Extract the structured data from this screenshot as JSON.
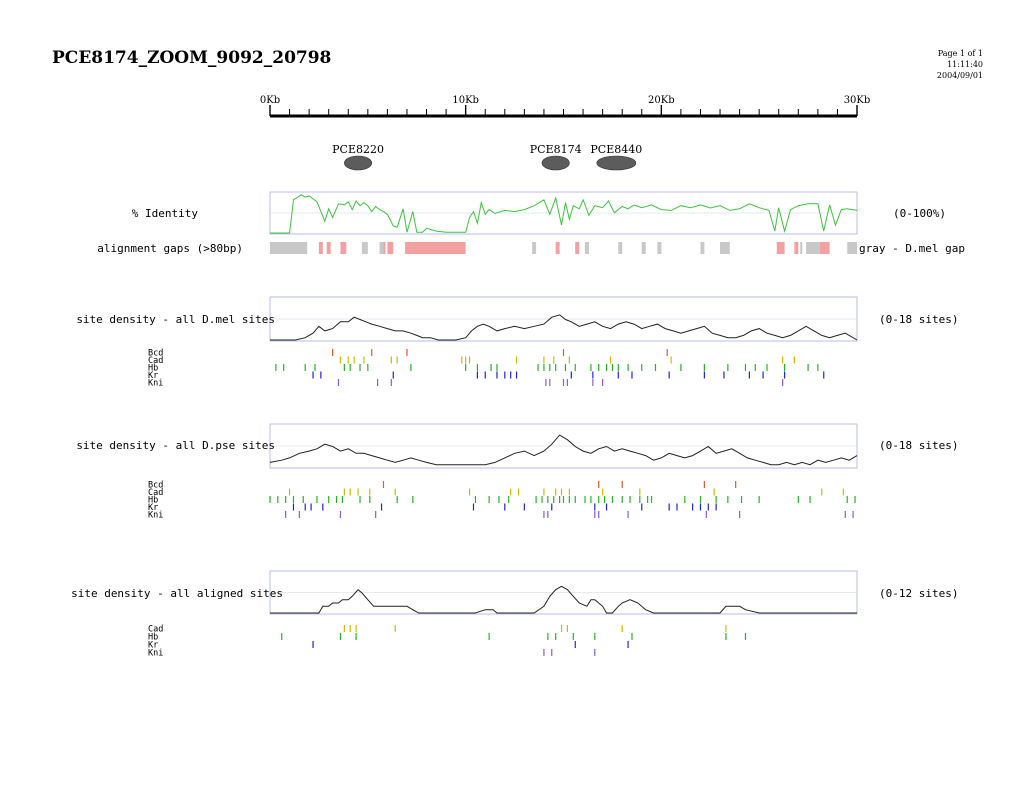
{
  "page": {
    "title": "PCE8174_ZOOM_9092_20798",
    "meta": [
      "Page 1 of 1",
      "11:11:40",
      "2004/09/01"
    ]
  },
  "colors": {
    "frame": "#b8bde8",
    "identity_line": "#3cc43c",
    "density_line": "#222222",
    "gap_gray": "#c8c8c8",
    "gap_red": "#f2a0a0",
    "Bcd": "#e05a2a",
    "Cad": "#d4b800",
    "Hb": "#22b622",
    "Kr": "#2222dd",
    "Kni": "#8a5cd0"
  },
  "chart_data": [
    {
      "type": "axis",
      "name": "ruler",
      "range_kb": [
        0,
        30
      ],
      "tick_labels": [
        "0Kb",
        "10Kb",
        "20Kb",
        "30Kb"
      ],
      "tick_values": [
        0,
        10,
        20,
        30
      ]
    },
    {
      "type": "annotation",
      "name": "enhancers",
      "items": [
        {
          "label": "PCE8220",
          "start": 3.8,
          "end": 5.2
        },
        {
          "label": "PCE8174",
          "start": 13.9,
          "end": 15.3
        },
        {
          "label": "PCE8440",
          "start": 16.7,
          "end": 18.7
        }
      ]
    },
    {
      "type": "line",
      "name": "identity",
      "label": "% Identity",
      "range_label": "(0-100%)",
      "ylim": [
        0,
        100
      ],
      "x": [
        0.0,
        1.0,
        1.2,
        1.6,
        1.8,
        2.0,
        2.4,
        2.8,
        3.0,
        3.2,
        3.5,
        3.8,
        4.0,
        4.2,
        4.4,
        4.6,
        4.8,
        5.0,
        5.2,
        5.4,
        5.6,
        5.8,
        6.0,
        6.3,
        6.5,
        6.8,
        7.0,
        7.3,
        7.5,
        7.8,
        8.0,
        8.5,
        9.0,
        9.5,
        10.0,
        10.2,
        10.4,
        10.6,
        10.8,
        11.0,
        11.2,
        11.5,
        12.0,
        12.5,
        13.0,
        13.5,
        14.0,
        14.3,
        14.6,
        14.9,
        15.1,
        15.3,
        15.5,
        15.8,
        16.0,
        16.3,
        16.6,
        17.0,
        17.3,
        17.6,
        18.0,
        18.3,
        18.6,
        19.0,
        19.5,
        20.0,
        20.5,
        21.0,
        21.5,
        22.0,
        22.5,
        23.0,
        23.5,
        24.0,
        24.5,
        25.0,
        25.5,
        25.8,
        26.0,
        26.3,
        26.6,
        27.0,
        27.5,
        28.0,
        28.3,
        28.6,
        28.9,
        29.2,
        29.5,
        30.0
      ],
      "values": [
        0,
        0,
        85,
        98,
        92,
        95,
        80,
        30,
        62,
        40,
        75,
        72,
        80,
        60,
        82,
        70,
        78,
        70,
        55,
        68,
        60,
        55,
        48,
        18,
        15,
        62,
        2,
        55,
        2,
        2,
        12,
        5,
        2,
        2,
        2,
        40,
        55,
        25,
        78,
        48,
        60,
        50,
        58,
        55,
        60,
        70,
        85,
        48,
        90,
        20,
        78,
        35,
        70,
        62,
        85,
        45,
        70,
        65,
        82,
        52,
        68,
        62,
        72,
        65,
        72,
        60,
        58,
        70,
        65,
        72,
        64,
        70,
        58,
        62,
        75,
        65,
        58,
        5,
        65,
        5,
        60,
        70,
        75,
        75,
        5,
        72,
        20,
        60,
        62,
        58
      ]
    },
    {
      "type": "segments",
      "name": "alignment_gaps",
      "label": "alignment gaps (>80bp)",
      "legend_label": "gray - D.mel gap",
      "gray": [
        [
          0.0,
          1.9
        ],
        [
          4.7,
          5.0
        ],
        [
          5.6,
          5.9
        ],
        [
          13.4,
          13.6
        ],
        [
          16.1,
          16.3
        ],
        [
          17.8,
          18.0
        ],
        [
          19.0,
          19.2
        ],
        [
          19.8,
          20.0
        ],
        [
          22.0,
          22.2
        ],
        [
          23.0,
          23.5
        ],
        [
          27.1,
          27.2
        ],
        [
          27.4,
          28.1
        ],
        [
          29.5,
          30.0
        ]
      ],
      "red": [
        [
          2.5,
          2.7
        ],
        [
          2.9,
          3.1
        ],
        [
          3.6,
          3.9
        ],
        [
          5.8,
          5.9
        ],
        [
          6.0,
          6.3
        ],
        [
          6.9,
          10.0
        ],
        [
          14.6,
          14.8
        ],
        [
          15.6,
          15.8
        ],
        [
          25.9,
          26.3
        ],
        [
          26.8,
          27.0
        ],
        [
          28.1,
          28.6
        ]
      ]
    },
    {
      "type": "line",
      "name": "density_mel",
      "label": "site density - all D.mel sites",
      "range_label": "(0-18 sites)",
      "ylim": [
        0,
        18
      ],
      "x": [
        0.0,
        0.8,
        1.3,
        1.8,
        2.2,
        2.5,
        2.8,
        3.2,
        3.6,
        4.0,
        4.3,
        4.6,
        4.9,
        5.2,
        5.6,
        6.0,
        6.4,
        6.8,
        7.2,
        7.5,
        7.8,
        8.2,
        8.6,
        9.0,
        9.5,
        10.0,
        10.3,
        10.6,
        10.9,
        11.2,
        11.6,
        12.0,
        12.5,
        13.0,
        13.5,
        14.0,
        14.4,
        14.8,
        15.1,
        15.4,
        15.8,
        16.2,
        16.6,
        17.0,
        17.4,
        17.8,
        18.2,
        18.6,
        19.0,
        19.4,
        19.8,
        20.2,
        20.6,
        21.0,
        21.4,
        21.8,
        22.2,
        22.6,
        23.0,
        23.4,
        23.8,
        24.2,
        24.6,
        25.0,
        25.4,
        25.8,
        26.2,
        26.6,
        27.0,
        27.4,
        27.8,
        28.2,
        28.6,
        29.0,
        29.4,
        30.0
      ],
      "values": [
        0,
        0,
        0,
        1,
        3,
        6,
        4,
        5,
        8,
        8,
        10,
        9,
        8,
        7,
        6,
        5,
        4,
        4,
        3,
        2,
        1,
        1,
        0,
        0,
        0,
        1,
        4,
        6,
        7,
        6,
        4,
        5,
        6,
        5,
        6,
        7,
        10,
        11,
        9,
        8,
        6,
        7,
        8,
        6,
        5,
        7,
        8,
        7,
        5,
        6,
        7,
        5,
        4,
        3,
        4,
        5,
        6,
        3,
        2,
        1,
        1,
        2,
        4,
        5,
        3,
        2,
        1,
        2,
        4,
        6,
        4,
        2,
        1,
        2,
        3,
        0
      ]
    },
    {
      "type": "ticks",
      "name": "sites_mel",
      "rows": [
        {
          "name": "Bcd",
          "positions": [
            3.2,
            5.2,
            7.0,
            15.0,
            20.3
          ]
        },
        {
          "name": "Cad",
          "positions": [
            3.6,
            4.0,
            4.3,
            4.8,
            6.2,
            6.5,
            9.8,
            10.0,
            10.2,
            12.6,
            14.0,
            14.5,
            15.3,
            17.4,
            20.5,
            26.2,
            26.8
          ]
        },
        {
          "name": "Hb",
          "positions": [
            0.3,
            0.7,
            1.8,
            2.3,
            3.8,
            4.1,
            4.6,
            5.0,
            7.2,
            10.0,
            10.6,
            11.3,
            11.6,
            13.7,
            14.0,
            14.3,
            14.6,
            15.1,
            15.6,
            16.4,
            16.8,
            17.2,
            17.5,
            17.8,
            18.3,
            19.0,
            19.7,
            21.0,
            22.2,
            23.4,
            24.3,
            24.8,
            25.4,
            26.3,
            27.5,
            28.0
          ]
        },
        {
          "name": "Kr",
          "positions": [
            2.2,
            2.6,
            6.3,
            10.6,
            11.0,
            11.6,
            12.0,
            12.3,
            12.6,
            15.4,
            16.5,
            17.8,
            18.5,
            20.4,
            22.2,
            23.2,
            24.5,
            25.2,
            26.3,
            28.3
          ]
        },
        {
          "name": "Kni",
          "positions": [
            3.5,
            5.5,
            6.2,
            14.1,
            14.3,
            15.0,
            15.2,
            16.5,
            17.0,
            26.2
          ]
        }
      ]
    },
    {
      "type": "line",
      "name": "density_pse",
      "label": "site density - all D.pse sites",
      "range_label": "(0-18 sites)",
      "ylim": [
        0,
        18
      ],
      "x": [
        0.0,
        0.6,
        1.0,
        1.5,
        2.0,
        2.4,
        2.8,
        3.2,
        3.6,
        4.0,
        4.4,
        4.8,
        5.2,
        5.6,
        6.0,
        6.4,
        6.8,
        7.2,
        7.6,
        8.0,
        8.5,
        9.0,
        10.0,
        11.0,
        11.5,
        12.0,
        12.5,
        13.0,
        13.5,
        14.0,
        14.4,
        14.8,
        15.2,
        15.6,
        16.0,
        16.4,
        16.8,
        17.2,
        17.6,
        18.0,
        18.4,
        18.8,
        19.2,
        19.6,
        20.0,
        20.4,
        20.8,
        21.2,
        21.6,
        22.0,
        22.4,
        22.8,
        23.2,
        23.6,
        24.0,
        24.4,
        24.8,
        25.2,
        25.6,
        26.0,
        26.4,
        26.8,
        27.2,
        27.6,
        28.0,
        28.4,
        28.8,
        29.2,
        29.6,
        30.0
      ],
      "values": [
        2,
        3,
        4,
        6,
        7,
        8,
        10,
        9,
        7,
        8,
        6,
        6,
        5,
        4,
        3,
        2,
        3,
        4,
        3,
        2,
        1,
        1,
        1,
        1,
        2,
        4,
        6,
        7,
        5,
        7,
        10,
        14,
        12,
        9,
        7,
        6,
        8,
        9,
        7,
        8,
        7,
        6,
        5,
        3,
        4,
        6,
        5,
        4,
        5,
        7,
        9,
        6,
        7,
        8,
        6,
        4,
        3,
        2,
        1,
        1,
        2,
        1,
        2,
        1,
        3,
        2,
        3,
        4,
        3,
        5
      ]
    },
    {
      "type": "ticks",
      "name": "sites_pse",
      "rows": [
        {
          "name": "Bcd",
          "positions": [
            5.8,
            16.8,
            18.0,
            22.2,
            23.8
          ]
        },
        {
          "name": "Cad",
          "positions": [
            1.0,
            3.8,
            4.1,
            4.5,
            5.1,
            6.4,
            10.2,
            12.3,
            12.7,
            14.0,
            14.6,
            14.9,
            15.3,
            17.0,
            18.9,
            22.7,
            28.2,
            29.3
          ]
        },
        {
          "name": "Hb",
          "positions": [
            0.0,
            0.4,
            0.8,
            1.2,
            1.7,
            2.4,
            3.0,
            3.4,
            3.7,
            4.6,
            5.1,
            6.5,
            7.3,
            10.5,
            11.2,
            11.7,
            12.2,
            13.6,
            13.9,
            14.2,
            14.5,
            14.8,
            15.0,
            15.3,
            15.6,
            16.1,
            16.4,
            16.8,
            17.1,
            17.5,
            18.0,
            18.4,
            18.9,
            19.3,
            19.5,
            21.2,
            22.0,
            22.8,
            23.4,
            24.1,
            25.0,
            27.0,
            27.6,
            29.5,
            29.9
          ]
        },
        {
          "name": "Kr",
          "positions": [
            1.2,
            1.8,
            2.1,
            2.7,
            5.7,
            10.4,
            12.0,
            13.0,
            14.4,
            16.6,
            17.2,
            19.0,
            20.4,
            20.8,
            21.6,
            22.0,
            22.4,
            22.8
          ]
        },
        {
          "name": "Kni",
          "positions": [
            0.8,
            1.5,
            3.6,
            5.4,
            14.0,
            14.2,
            16.6,
            16.8,
            18.3,
            22.3,
            24.0,
            29.4,
            29.8
          ]
        }
      ]
    },
    {
      "type": "line",
      "name": "density_aligned",
      "label": "site density - all aligned sites",
      "range_label": "(0-12 sites)",
      "ylim": [
        0,
        12
      ],
      "x": [
        0.0,
        1.0,
        2.0,
        2.5,
        2.7,
        3.0,
        3.2,
        3.5,
        3.7,
        4.0,
        4.2,
        4.5,
        4.7,
        5.0,
        5.3,
        5.5,
        5.8,
        6.5,
        7.0,
        7.3,
        7.6,
        8.5,
        9.5,
        10.5,
        11.0,
        11.2,
        11.4,
        11.6,
        12.0,
        12.5,
        13.0,
        13.5,
        14.0,
        14.3,
        14.6,
        14.9,
        15.2,
        15.5,
        15.8,
        16.2,
        16.4,
        16.6,
        16.8,
        17.0,
        17.2,
        17.5,
        17.8,
        18.0,
        18.4,
        18.8,
        19.2,
        19.6,
        20.0,
        22.0,
        23.0,
        23.3,
        23.7,
        24.0,
        24.3,
        25.0,
        27.0,
        28.0,
        29.0,
        30.0
      ],
      "values": [
        0,
        0,
        0,
        0,
        2,
        2,
        3,
        3,
        4,
        4,
        5,
        7,
        6,
        4,
        2,
        2,
        2,
        2,
        2,
        1,
        0,
        0,
        0,
        0,
        1,
        1,
        1,
        0,
        0,
        0,
        0,
        0,
        2,
        5,
        7,
        8,
        7,
        5,
        3,
        2,
        4,
        4,
        3,
        2,
        0,
        0,
        2,
        3,
        4,
        3,
        1,
        0,
        0,
        0,
        0,
        2,
        2,
        2,
        1,
        0,
        0,
        0,
        0,
        0
      ]
    },
    {
      "type": "ticks",
      "name": "sites_aligned",
      "rows": [
        {
          "name": "Cad",
          "positions": [
            3.8,
            4.1,
            4.4,
            6.4,
            14.9,
            15.2,
            18.0,
            23.3
          ]
        },
        {
          "name": "Hb",
          "positions": [
            0.6,
            3.6,
            4.4,
            11.2,
            14.2,
            14.6,
            15.5,
            16.6,
            18.5,
            23.3,
            24.3
          ]
        },
        {
          "name": "Kr",
          "positions": [
            2.2,
            15.6,
            18.3
          ]
        },
        {
          "name": "Kni",
          "positions": [
            14.0,
            14.4,
            16.6
          ]
        }
      ]
    }
  ]
}
